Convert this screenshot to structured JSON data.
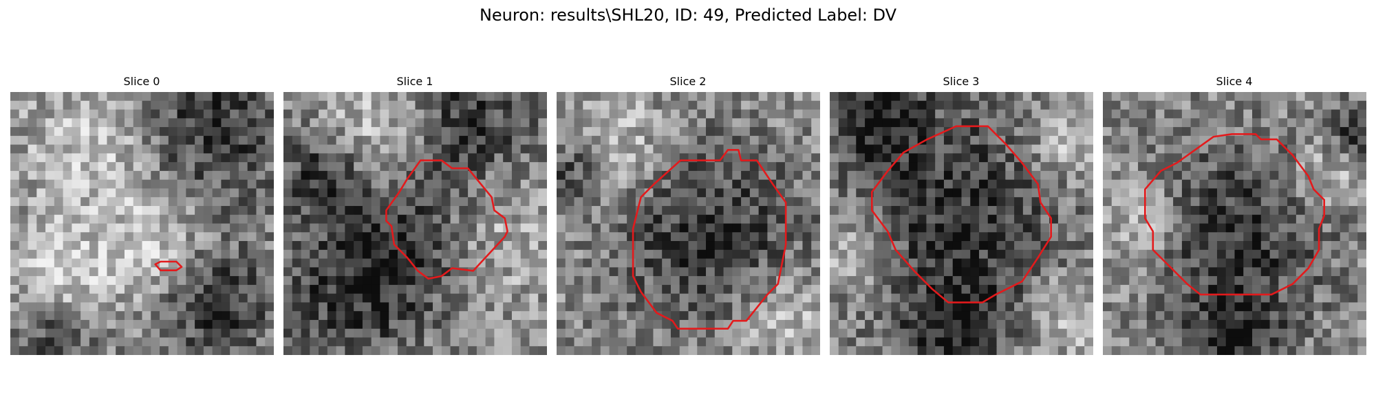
{
  "figure": {
    "suptitle": "Neuron: results\\SHL20, ID: 49, Predicted Label: DV"
  },
  "colors": {
    "contour": "#e31a1c"
  },
  "panels": [
    {
      "title": "Slice 0",
      "image": {
        "type": "grayscale-noise",
        "seed": 11,
        "bright_blobs": [
          [
            0.32,
            0.22,
            0.18
          ],
          [
            0.55,
            0.58,
            0.15
          ],
          [
            0.2,
            0.72,
            0.14
          ]
        ],
        "dark_blobs": [
          [
            0.75,
            0.15,
            0.2
          ],
          [
            0.78,
            0.8,
            0.16
          ],
          [
            0.18,
            0.92,
            0.1
          ]
        ]
      },
      "contour": [
        [
          0.55,
          0.655
        ],
        [
          0.57,
          0.645
        ],
        [
          0.63,
          0.645
        ],
        [
          0.65,
          0.665
        ],
        [
          0.63,
          0.678
        ],
        [
          0.57,
          0.678
        ]
      ]
    },
    {
      "title": "Slice 1",
      "image": {
        "type": "grayscale-noise",
        "seed": 23,
        "bright_blobs": [
          [
            0.75,
            0.55,
            0.18
          ],
          [
            0.35,
            0.15,
            0.15
          ]
        ],
        "dark_blobs": [
          [
            0.55,
            0.56,
            0.18
          ],
          [
            0.7,
            0.12,
            0.17
          ],
          [
            0.25,
            0.75,
            0.2
          ],
          [
            0.15,
            0.3,
            0.12
          ]
        ]
      },
      "contour": [
        [
          0.52,
          0.26
        ],
        [
          0.6,
          0.26
        ],
        [
          0.64,
          0.29
        ],
        [
          0.7,
          0.29
        ],
        [
          0.79,
          0.4
        ],
        [
          0.8,
          0.45
        ],
        [
          0.84,
          0.48
        ],
        [
          0.85,
          0.53
        ],
        [
          0.84,
          0.55
        ],
        [
          0.72,
          0.68
        ],
        [
          0.64,
          0.67
        ],
        [
          0.6,
          0.7
        ],
        [
          0.55,
          0.71
        ],
        [
          0.51,
          0.68
        ],
        [
          0.47,
          0.63
        ],
        [
          0.42,
          0.58
        ],
        [
          0.41,
          0.51
        ],
        [
          0.39,
          0.49
        ],
        [
          0.39,
          0.45
        ],
        [
          0.44,
          0.38
        ],
        [
          0.47,
          0.33
        ]
      ]
    },
    {
      "title": "Slice 2",
      "image": {
        "type": "grayscale-noise",
        "seed": 37,
        "bright_blobs": [
          [
            0.2,
            0.2,
            0.15
          ],
          [
            0.85,
            0.85,
            0.12
          ]
        ],
        "dark_blobs": [
          [
            0.58,
            0.55,
            0.25
          ],
          [
            0.05,
            0.3,
            0.1
          ]
        ]
      },
      "contour": [
        [
          0.47,
          0.26
        ],
        [
          0.62,
          0.26
        ],
        [
          0.65,
          0.22
        ],
        [
          0.69,
          0.22
        ],
        [
          0.7,
          0.26
        ],
        [
          0.76,
          0.26
        ],
        [
          0.82,
          0.35
        ],
        [
          0.87,
          0.42
        ],
        [
          0.87,
          0.58
        ],
        [
          0.84,
          0.73
        ],
        [
          0.8,
          0.77
        ],
        [
          0.76,
          0.82
        ],
        [
          0.72,
          0.87
        ],
        [
          0.67,
          0.87
        ],
        [
          0.65,
          0.9
        ],
        [
          0.46,
          0.9
        ],
        [
          0.44,
          0.87
        ],
        [
          0.38,
          0.84
        ],
        [
          0.32,
          0.76
        ],
        [
          0.29,
          0.7
        ],
        [
          0.29,
          0.52
        ],
        [
          0.3,
          0.48
        ],
        [
          0.32,
          0.4
        ],
        [
          0.37,
          0.35
        ]
      ]
    },
    {
      "title": "Slice 3",
      "image": {
        "type": "grayscale-noise",
        "seed": 53,
        "bright_blobs": [
          [
            0.9,
            0.2,
            0.12
          ],
          [
            0.1,
            0.6,
            0.1
          ],
          [
            0.92,
            0.85,
            0.12
          ]
        ],
        "dark_blobs": [
          [
            0.5,
            0.45,
            0.3
          ],
          [
            0.47,
            0.92,
            0.15
          ],
          [
            0.2,
            0.1,
            0.12
          ]
        ]
      },
      "contour": [
        [
          0.37,
          0.18
        ],
        [
          0.48,
          0.13
        ],
        [
          0.6,
          0.13
        ],
        [
          0.67,
          0.2
        ],
        [
          0.73,
          0.27
        ],
        [
          0.79,
          0.35
        ],
        [
          0.8,
          0.42
        ],
        [
          0.84,
          0.48
        ],
        [
          0.84,
          0.55
        ],
        [
          0.79,
          0.63
        ],
        [
          0.73,
          0.72
        ],
        [
          0.63,
          0.77
        ],
        [
          0.58,
          0.8
        ],
        [
          0.45,
          0.8
        ],
        [
          0.39,
          0.75
        ],
        [
          0.32,
          0.68
        ],
        [
          0.25,
          0.6
        ],
        [
          0.22,
          0.53
        ],
        [
          0.16,
          0.45
        ],
        [
          0.16,
          0.38
        ],
        [
          0.22,
          0.3
        ],
        [
          0.28,
          0.23
        ]
      ]
    },
    {
      "title": "Slice 4",
      "image": {
        "type": "grayscale-noise",
        "seed": 71,
        "bright_blobs": [
          [
            0.15,
            0.5,
            0.12
          ],
          [
            0.85,
            0.3,
            0.1
          ]
        ],
        "dark_blobs": [
          [
            0.5,
            0.55,
            0.25
          ],
          [
            0.5,
            0.95,
            0.12
          ],
          [
            0.95,
            0.15,
            0.08
          ]
        ]
      },
      "contour": [
        [
          0.35,
          0.22
        ],
        [
          0.42,
          0.17
        ],
        [
          0.49,
          0.16
        ],
        [
          0.51,
          0.16
        ],
        [
          0.58,
          0.16
        ],
        [
          0.6,
          0.18
        ],
        [
          0.66,
          0.18
        ],
        [
          0.72,
          0.24
        ],
        [
          0.78,
          0.32
        ],
        [
          0.8,
          0.37
        ],
        [
          0.84,
          0.41
        ],
        [
          0.84,
          0.47
        ],
        [
          0.82,
          0.52
        ],
        [
          0.82,
          0.6
        ],
        [
          0.78,
          0.67
        ],
        [
          0.72,
          0.73
        ],
        [
          0.64,
          0.77
        ],
        [
          0.58,
          0.77
        ],
        [
          0.5,
          0.77
        ],
        [
          0.37,
          0.77
        ],
        [
          0.32,
          0.73
        ],
        [
          0.26,
          0.67
        ],
        [
          0.19,
          0.6
        ],
        [
          0.19,
          0.53
        ],
        [
          0.16,
          0.48
        ],
        [
          0.16,
          0.37
        ],
        [
          0.22,
          0.3
        ],
        [
          0.28,
          0.27
        ]
      ]
    }
  ]
}
